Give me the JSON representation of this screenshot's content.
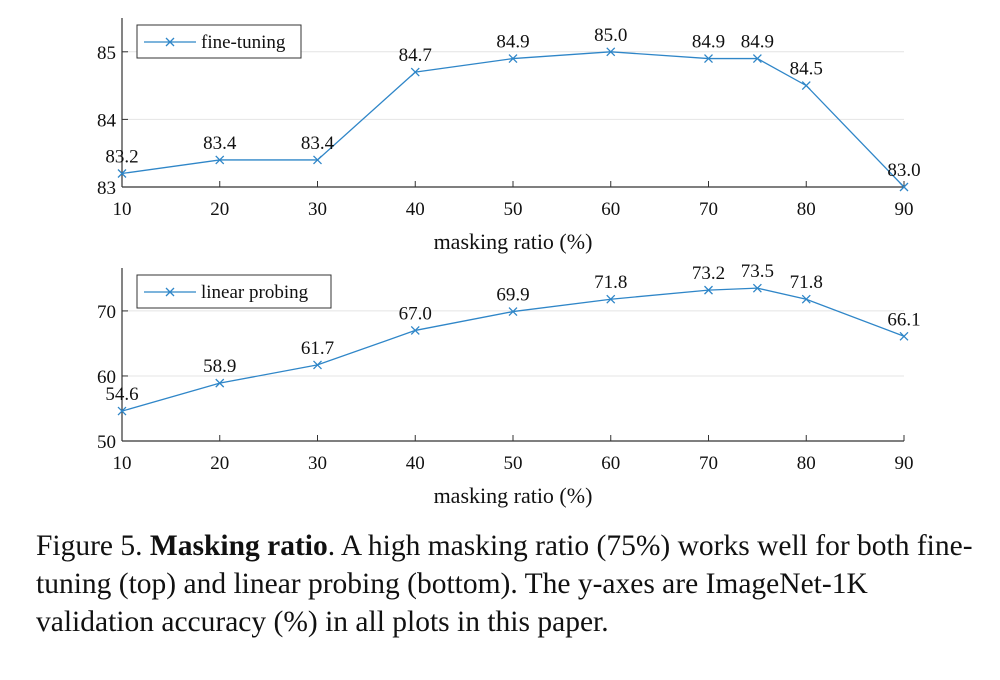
{
  "chart_data": [
    {
      "type": "line",
      "legend": "fine-tuning",
      "legend_position": "top-left",
      "x": [
        10,
        20,
        30,
        40,
        50,
        60,
        70,
        75,
        80,
        90
      ],
      "values": [
        83.2,
        83.4,
        83.4,
        84.7,
        84.9,
        85.0,
        84.9,
        84.9,
        84.5,
        83.0
      ],
      "labels": [
        "83.2",
        "83.4",
        "83.4",
        "84.7",
        "84.9",
        "85.0",
        "84.9",
        "84.9",
        "84.5",
        "83.0"
      ],
      "xlabel": "masking ratio (%)",
      "xticks": [
        10,
        20,
        30,
        40,
        50,
        60,
        70,
        80,
        90
      ],
      "yticks": [
        83,
        84,
        85
      ],
      "xlim": [
        10,
        90
      ],
      "ylim": [
        83,
        85.5
      ],
      "grid": "horizontal",
      "color": "#2f86c8"
    },
    {
      "type": "line",
      "legend": "linear probing",
      "legend_position": "top-left",
      "x": [
        10,
        20,
        30,
        40,
        50,
        60,
        70,
        75,
        80,
        90
      ],
      "values": [
        54.6,
        58.9,
        61.7,
        67.0,
        69.9,
        71.8,
        73.2,
        73.5,
        71.8,
        66.1
      ],
      "labels": [
        "54.6",
        "58.9",
        "61.7",
        "67.0",
        "69.9",
        "71.8",
        "73.2",
        "73.5",
        "71.8",
        "66.1"
      ],
      "xlabel": "masking ratio (%)",
      "xticks": [
        10,
        20,
        30,
        40,
        50,
        60,
        70,
        80,
        90
      ],
      "yticks": [
        50,
        60,
        70
      ],
      "xlim": [
        10,
        90
      ],
      "ylim": [
        50,
        76.6
      ],
      "grid": "horizontal",
      "color": "#2f86c8"
    }
  ],
  "caption": {
    "prefix": "Figure 5. ",
    "title": "Masking ratio",
    "text": ". A high masking ratio (75%) works well for both fine-tuning (top) and linear probing (bottom). The y-axes are ImageNet-1K validation accuracy (%) in all plots in this paper."
  }
}
